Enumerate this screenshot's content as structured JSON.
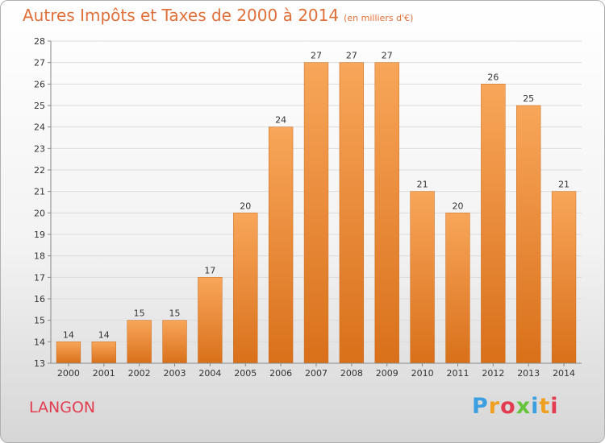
{
  "chart_data": {
    "type": "bar",
    "title": "Autres Impôts et Taxes de 2000 à 2014",
    "subtitle": "(en milliers d'€)",
    "categories": [
      "2000",
      "2001",
      "2002",
      "2003",
      "2004",
      "2005",
      "2006",
      "2007",
      "2008",
      "2009",
      "2010",
      "2011",
      "2012",
      "2013",
      "2014"
    ],
    "values": [
      14,
      14,
      15,
      15,
      17,
      20,
      24,
      27,
      27,
      27,
      21,
      20,
      26,
      25,
      21
    ],
    "ylim": [
      13,
      28
    ],
    "yticks": [
      13,
      14,
      15,
      16,
      17,
      18,
      19,
      20,
      21,
      22,
      23,
      24,
      25,
      26,
      27,
      28
    ],
    "grid": true,
    "bar_color": "#f0882a"
  },
  "footer": {
    "city": "LANGON",
    "logo": "Proxiti",
    "logo_colors": [
      "#3b9fe0",
      "#f0a020",
      "#e33c50",
      "#66c43a",
      "#3b9fe0",
      "#f0a020",
      "#e33c50"
    ]
  }
}
